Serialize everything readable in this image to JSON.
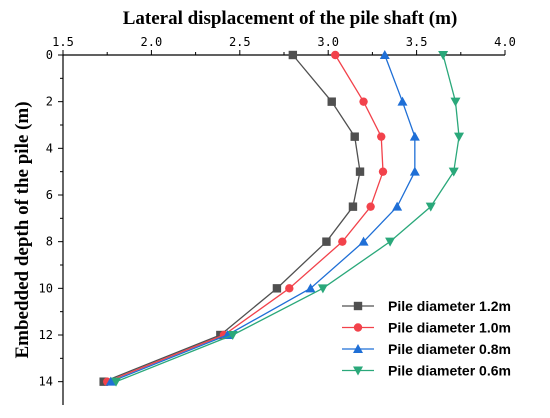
{
  "chart_data": {
    "type": "line",
    "title": "Lateral displacement of the pile shaft (m)",
    "xlabel": "Lateral displacement of the pile shaft (m)",
    "ylabel": "Embedded depth of the pile (m)",
    "xlim": [
      1.5,
      4.0
    ],
    "ylim": [
      0,
      15
    ],
    "x_axis_position": "top",
    "y_inverted": true,
    "x_ticks": [
      "1.5",
      "2.0",
      "2.5",
      "3.0",
      "3.5",
      "4.0"
    ],
    "y_ticks": [
      "0",
      "2",
      "4",
      "6",
      "8",
      "10",
      "12",
      "14"
    ],
    "grid": false,
    "legend_position": "bottom-right",
    "series": [
      {
        "name": "Pile diameter 1.2m",
        "color": "#505050",
        "marker": "square",
        "depth": [
          0,
          2,
          3.5,
          5,
          6.5,
          8,
          10,
          12,
          14
        ],
        "displacement": [
          2.8,
          3.02,
          3.15,
          3.18,
          3.14,
          2.99,
          2.71,
          2.39,
          1.73
        ]
      },
      {
        "name": "Pile diameter 1.0m",
        "color": "#f2424b",
        "marker": "circle",
        "depth": [
          0,
          2,
          3.5,
          5,
          6.5,
          8,
          10,
          12,
          14
        ],
        "displacement": [
          3.04,
          3.2,
          3.3,
          3.31,
          3.24,
          3.08,
          2.78,
          2.41,
          1.75
        ]
      },
      {
        "name": "Pile diameter 0.8m",
        "color": "#1f6fd6",
        "marker": "triangle-up",
        "depth": [
          0,
          2,
          3.5,
          5,
          6.5,
          8,
          10,
          12,
          14
        ],
        "displacement": [
          3.32,
          3.42,
          3.49,
          3.49,
          3.39,
          3.2,
          2.9,
          2.43,
          1.77
        ]
      },
      {
        "name": "Pile diameter 0.6m",
        "color": "#2aa87a",
        "marker": "triangle-down",
        "depth": [
          0,
          2,
          3.5,
          5,
          6.5,
          8,
          10,
          12,
          14
        ],
        "displacement": [
          3.65,
          3.72,
          3.74,
          3.71,
          3.58,
          3.35,
          2.97,
          2.46,
          1.8
        ]
      }
    ]
  }
}
